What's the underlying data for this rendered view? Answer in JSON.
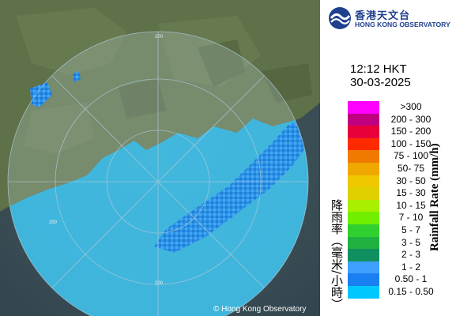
{
  "header": {
    "org_name_cn": "香港天文台",
    "org_name_en": "HONG KONG OBSERVATORY",
    "logo_icon": "hko-logo-icon"
  },
  "timestamp": {
    "time": "12:12 HKT",
    "date": "30-03-2025"
  },
  "map": {
    "copyright": "© Hong Kong Observatory",
    "range_labels": [
      "200",
      "200",
      "200"
    ],
    "colors": {
      "land": "#5c6e48",
      "sea": "#3a4f5a",
      "coverage_tint": "#d9ecf4",
      "range_ring": "#bdd6e2"
    }
  },
  "legend": {
    "title_cn": "降雨率（毫米/小時）",
    "title_en": "Rainfall Rate (mm/h)",
    "items": [
      {
        "label": ">300",
        "color": "#ff00ff"
      },
      {
        "label": "200 - 300",
        "color": "#c00080"
      },
      {
        "label": "150 - 200",
        "color": "#e8003a"
      },
      {
        "label": "100 - 150",
        "color": "#ff2a00"
      },
      {
        "label": "75 - 100",
        "color": "#f07a00"
      },
      {
        "label": "50- 75",
        "color": "#f0a800"
      },
      {
        "label": "30 - 50",
        "color": "#f0c800"
      },
      {
        "label": "15 - 30",
        "color": "#e0d000"
      },
      {
        "label": "10 - 15",
        "color": "#a8f000"
      },
      {
        "label": "7 - 10",
        "color": "#70f000"
      },
      {
        "label": "5 - 7",
        "color": "#30d030"
      },
      {
        "label": "3 - 5",
        "color": "#20b040"
      },
      {
        "label": "2 - 3",
        "color": "#109060"
      },
      {
        "label": "1 - 2",
        "color": "#40a0ff"
      },
      {
        "label": "0.50 - 1",
        "color": "#1a7ff0"
      },
      {
        "label": "0.15 - 0.50",
        "color": "#00c8ff"
      }
    ]
  }
}
